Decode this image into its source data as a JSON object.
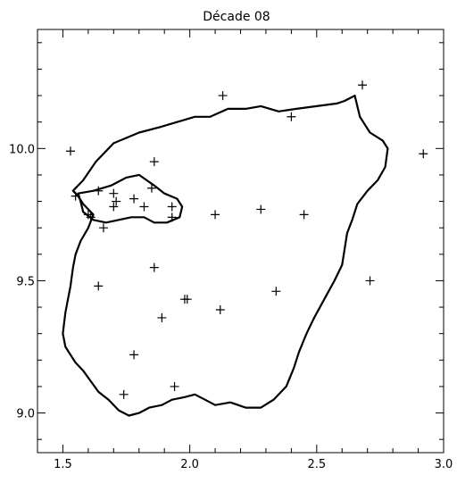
{
  "chart_data": {
    "type": "scatter",
    "title": "Décade 08",
    "xlabel": "",
    "ylabel": "",
    "xlim": [
      1.4,
      3.0
    ],
    "ylim": [
      8.85,
      10.45
    ],
    "xticks": [
      "1.5",
      "2.0",
      "2.5",
      "3.0"
    ],
    "xtick_values": [
      1.5,
      2.0,
      2.5,
      3.0
    ],
    "yticks": [
      "9.0",
      "9.5",
      "10.0"
    ],
    "ytick_values": [
      9.0,
      9.5,
      10.0
    ],
    "grid": false,
    "marker": "plus",
    "marker_color": "#000000",
    "points": [
      {
        "x": 1.53,
        "y": 9.99
      },
      {
        "x": 2.13,
        "y": 10.2
      },
      {
        "x": 2.68,
        "y": 10.24
      },
      {
        "x": 2.4,
        "y": 10.12
      },
      {
        "x": 2.92,
        "y": 9.98
      },
      {
        "x": 1.86,
        "y": 9.95
      },
      {
        "x": 1.55,
        "y": 9.82
      },
      {
        "x": 1.64,
        "y": 9.84
      },
      {
        "x": 1.7,
        "y": 9.83
      },
      {
        "x": 1.71,
        "y": 9.8
      },
      {
        "x": 1.7,
        "y": 9.78
      },
      {
        "x": 1.78,
        "y": 9.81
      },
      {
        "x": 1.85,
        "y": 9.85
      },
      {
        "x": 1.82,
        "y": 9.78
      },
      {
        "x": 1.93,
        "y": 9.78
      },
      {
        "x": 1.93,
        "y": 9.74
      },
      {
        "x": 1.6,
        "y": 9.75
      },
      {
        "x": 1.61,
        "y": 9.74
      },
      {
        "x": 1.66,
        "y": 9.7
      },
      {
        "x": 2.1,
        "y": 9.75
      },
      {
        "x": 2.28,
        "y": 9.77
      },
      {
        "x": 2.45,
        "y": 9.75
      },
      {
        "x": 1.86,
        "y": 9.55
      },
      {
        "x": 1.64,
        "y": 9.48
      },
      {
        "x": 2.71,
        "y": 9.5
      },
      {
        "x": 2.34,
        "y": 9.46
      },
      {
        "x": 1.98,
        "y": 9.43
      },
      {
        "x": 1.99,
        "y": 9.43
      },
      {
        "x": 2.12,
        "y": 9.39
      },
      {
        "x": 1.89,
        "y": 9.36
      },
      {
        "x": 1.78,
        "y": 9.22
      },
      {
        "x": 1.74,
        "y": 9.07
      },
      {
        "x": 1.94,
        "y": 9.1
      }
    ],
    "outlines": [
      {
        "name": "",
        "closed": true,
        "path": [
          [
            1.54,
            9.84
          ],
          [
            1.58,
            9.88
          ],
          [
            1.63,
            9.95
          ],
          [
            1.7,
            10.02
          ],
          [
            1.8,
            10.06
          ],
          [
            1.88,
            10.08
          ],
          [
            1.95,
            10.1
          ],
          [
            2.02,
            10.12
          ],
          [
            2.08,
            10.12
          ],
          [
            2.15,
            10.15
          ],
          [
            2.22,
            10.15
          ],
          [
            2.28,
            10.16
          ],
          [
            2.35,
            10.14
          ],
          [
            2.42,
            10.15
          ],
          [
            2.5,
            10.16
          ],
          [
            2.58,
            10.17
          ],
          [
            2.61,
            10.18
          ],
          [
            2.65,
            10.2
          ],
          [
            2.67,
            10.12
          ],
          [
            2.71,
            10.06
          ],
          [
            2.76,
            10.03
          ],
          [
            2.78,
            10.0
          ],
          [
            2.77,
            9.93
          ],
          [
            2.74,
            9.88
          ],
          [
            2.7,
            9.84
          ],
          [
            2.66,
            9.79
          ],
          [
            2.64,
            9.73
          ],
          [
            2.62,
            9.68
          ],
          [
            2.61,
            9.62
          ],
          [
            2.6,
            9.56
          ],
          [
            2.57,
            9.5
          ],
          [
            2.53,
            9.43
          ],
          [
            2.49,
            9.36
          ],
          [
            2.46,
            9.3
          ],
          [
            2.43,
            9.23
          ],
          [
            2.41,
            9.17
          ],
          [
            2.38,
            9.1
          ],
          [
            2.33,
            9.05
          ],
          [
            2.28,
            9.02
          ],
          [
            2.22,
            9.02
          ],
          [
            2.16,
            9.04
          ],
          [
            2.1,
            9.03
          ],
          [
            2.06,
            9.05
          ],
          [
            2.02,
            9.07
          ],
          [
            1.98,
            9.06
          ],
          [
            1.93,
            9.05
          ],
          [
            1.89,
            9.03
          ],
          [
            1.84,
            9.02
          ],
          [
            1.8,
            9.0
          ],
          [
            1.76,
            8.99
          ],
          [
            1.72,
            9.01
          ],
          [
            1.68,
            9.05
          ],
          [
            1.64,
            9.08
          ],
          [
            1.61,
            9.12
          ],
          [
            1.58,
            9.16
          ],
          [
            1.55,
            9.19
          ],
          [
            1.51,
            9.25
          ],
          [
            1.5,
            9.3
          ],
          [
            1.51,
            9.38
          ],
          [
            1.52,
            9.43
          ],
          [
            1.53,
            9.48
          ],
          [
            1.54,
            9.55
          ],
          [
            1.55,
            9.6
          ],
          [
            1.57,
            9.65
          ],
          [
            1.6,
            9.7
          ],
          [
            1.62,
            9.75
          ],
          [
            1.58,
            9.79
          ],
          [
            1.56,
            9.82
          ],
          [
            1.54,
            9.84
          ]
        ]
      },
      {
        "name": "",
        "closed": true,
        "path": [
          [
            1.56,
            9.83
          ],
          [
            1.62,
            9.84
          ],
          [
            1.69,
            9.86
          ],
          [
            1.75,
            9.89
          ],
          [
            1.8,
            9.9
          ],
          [
            1.86,
            9.86
          ],
          [
            1.9,
            9.83
          ],
          [
            1.95,
            9.81
          ],
          [
            1.97,
            9.78
          ],
          [
            1.96,
            9.74
          ],
          [
            1.91,
            9.72
          ],
          [
            1.86,
            9.72
          ],
          [
            1.82,
            9.74
          ],
          [
            1.77,
            9.74
          ],
          [
            1.72,
            9.73
          ],
          [
            1.67,
            9.72
          ],
          [
            1.62,
            9.73
          ],
          [
            1.58,
            9.76
          ],
          [
            1.57,
            9.8
          ],
          [
            1.56,
            9.83
          ]
        ]
      }
    ]
  }
}
